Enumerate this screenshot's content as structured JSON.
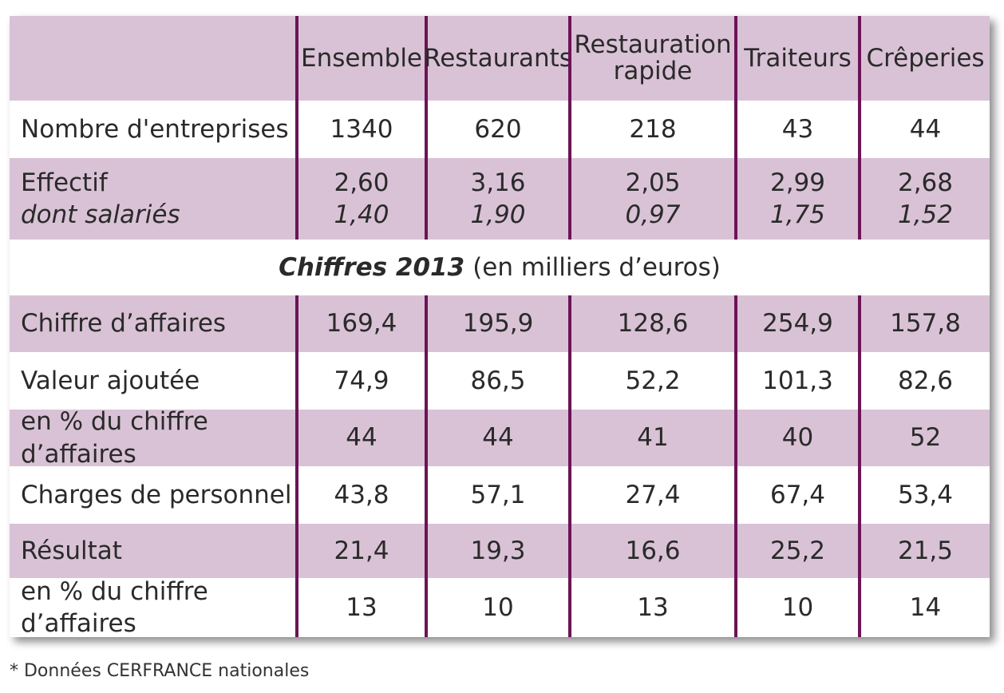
{
  "columns": [
    "Ensemble",
    "Restaurants",
    "Restauration rapide",
    "Traiteurs",
    "Crêperies"
  ],
  "rows_top": [
    {
      "label": "Nombre d'entreprises",
      "values": [
        "1340",
        "620",
        "218",
        "43",
        "44"
      ]
    }
  ],
  "effectif": {
    "label": "Effectif",
    "sublabel": "dont salariés",
    "values": [
      "2,60",
      "3,16",
      "2,05",
      "2,99",
      "2,68"
    ],
    "subvalues": [
      "1,40",
      "1,90",
      "0,97",
      "1,75",
      "1,52"
    ]
  },
  "section": {
    "bold": "Chiffres 2013",
    "rest": "(en milliers d’euros)"
  },
  "rows_bottom": [
    {
      "label": "Chiffre d’affaires",
      "values": [
        "169,4",
        "195,9",
        "128,6",
        "254,9",
        "157,8"
      ]
    },
    {
      "label": "Valeur ajoutée",
      "values": [
        "74,9",
        "86,5",
        "52,2",
        "101,3",
        "82,6"
      ]
    },
    {
      "label": "en % du chiffre d’affaires",
      "values": [
        "44",
        "44",
        "41",
        "40",
        "52"
      ]
    },
    {
      "label": "Charges de personnel",
      "values": [
        "43,8",
        "57,1",
        "27,4",
        "67,4",
        "53,4"
      ]
    },
    {
      "label": "Résultat",
      "values": [
        "21,4",
        "19,3",
        "16,6",
        "25,2",
        "21,5"
      ]
    },
    {
      "label": "en % du chiffre d’affaires",
      "values": [
        "13",
        "10",
        "13",
        "10",
        "14"
      ]
    }
  ],
  "footnote": "* Données CERFRANCE nationales",
  "colors": {
    "shade": "#d9c2d6",
    "divider": "#6b1456"
  }
}
